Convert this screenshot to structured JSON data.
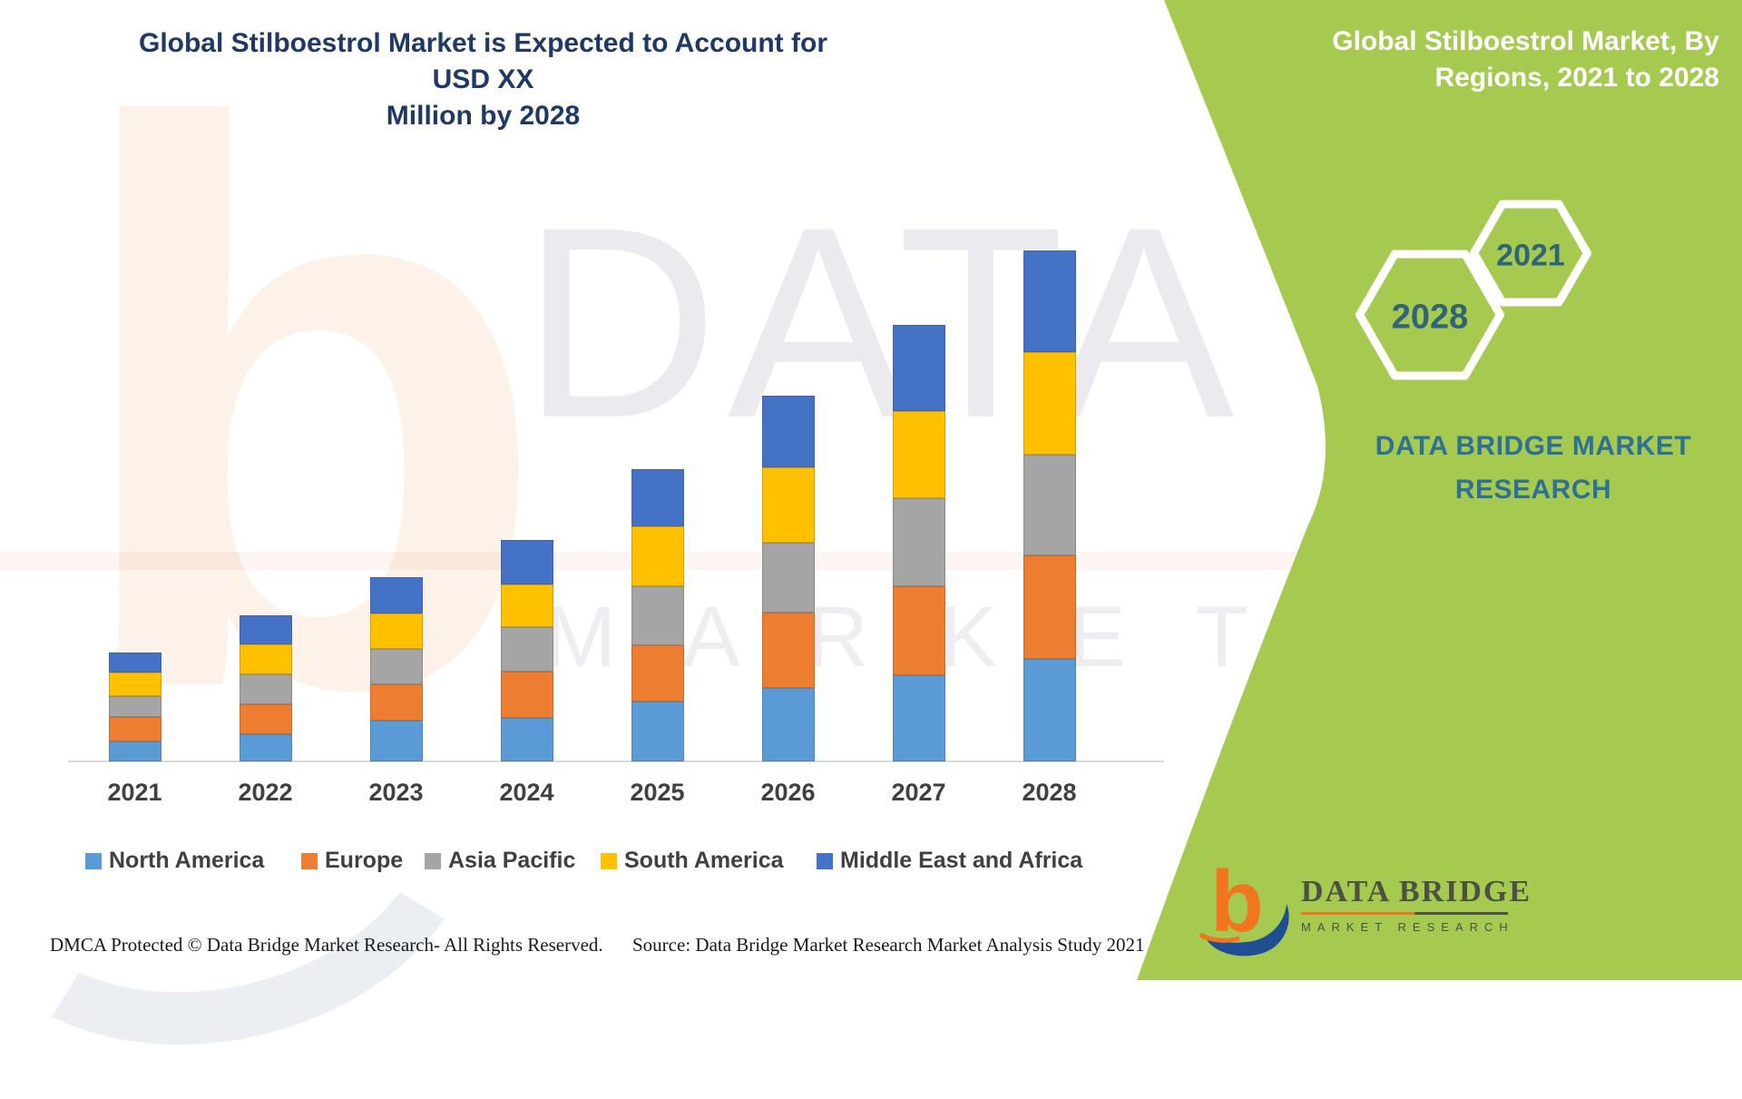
{
  "title": {
    "line1": "Global Stilboestrol Market is Expected to Account for USD XX",
    "line2": "Million by 2028"
  },
  "side_panel": {
    "heading_line1": "Global Stilboestrol Market, By",
    "heading_line2": "Regions, 2021 to 2028",
    "hexagons": [
      {
        "label": "2028"
      },
      {
        "label": "2021"
      }
    ],
    "brand_line1": "DATA BRIDGE MARKET",
    "brand_line2": "RESEARCH",
    "panel_color": "#A6C94F"
  },
  "chart_data": {
    "type": "bar",
    "stacked": true,
    "title": "Global Stilboestrol Market is Expected to Account for USD XX Million by 2028",
    "xlabel": "",
    "ylabel": "",
    "units": "USD Million (values masked as XX; series values below are relative units read from bar heights)",
    "value_axis_visible": false,
    "grid": false,
    "legend_position": "bottom",
    "categories": [
      "2021",
      "2022",
      "2023",
      "2024",
      "2025",
      "2026",
      "2027",
      "2028"
    ],
    "series": [
      {
        "name": "North America",
        "color": "#5B9BD5",
        "values": [
          22,
          30,
          45,
          48,
          66,
          81,
          95,
          113
        ]
      },
      {
        "name": "Europe",
        "color": "#ED7D31",
        "values": [
          27,
          33,
          40,
          51,
          62,
          83,
          98,
          114
        ]
      },
      {
        "name": "Asia Pacific",
        "color": "#A5A5A5",
        "values": [
          23,
          33,
          39,
          49,
          65,
          77,
          97,
          111
        ]
      },
      {
        "name": "South America",
        "color": "#FFC000",
        "values": [
          26,
          33,
          39,
          47,
          66,
          83,
          96,
          113
        ]
      },
      {
        "name": "Middle East and Africa",
        "color": "#4472C4",
        "values": [
          22,
          32,
          40,
          49,
          63,
          79,
          95,
          112
        ]
      }
    ],
    "totals": [
      120,
      161,
      203,
      244,
      322,
      403,
      481,
      563
    ]
  },
  "footer": {
    "dmca": "DMCA Protected © Data Bridge Market Research- All Rights Reserved.",
    "source": "Source: Data Bridge Market Research Market Analysis Study 2021"
  },
  "logo": {
    "name": "DATA BRIDGE",
    "tagline": "MARKET RESEARCH",
    "b_color": "#F27620",
    "d_color": "#1F4E94"
  },
  "watermark": {
    "letter": "b",
    "line1": "DATA BRIDGE",
    "line2": "M A R K E T"
  }
}
